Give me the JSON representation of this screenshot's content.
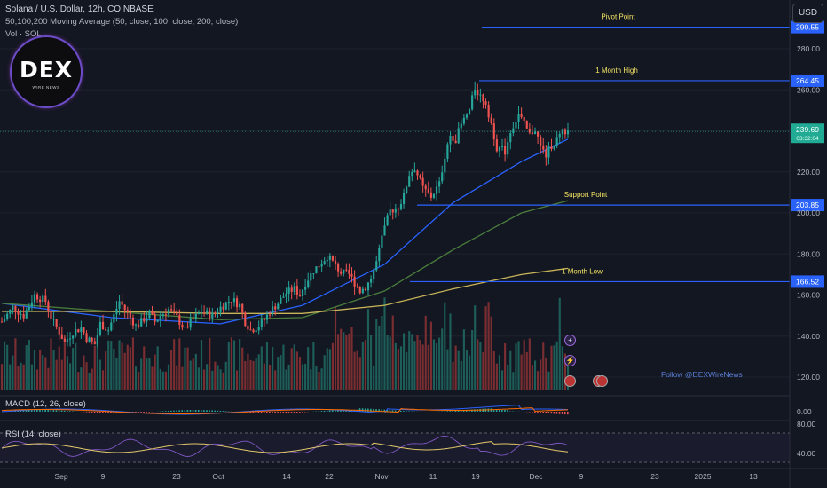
{
  "header": {
    "line1": "Solana / U.S. Dollar, 12h, COINBASE",
    "line2": "50,100,200 Moving Average (50, close, 100, close, 200, close)",
    "line3": "Vol · SOL"
  },
  "currency_button": "USD",
  "logo": {
    "main": "DEX",
    "sub": "WIRE NEWS"
  },
  "follow_text": "Follow @DEXWireNews",
  "current_price": {
    "value": "239.69",
    "countdown": "03:32:04"
  },
  "colors": {
    "background": "#131722",
    "up": "#26a69a",
    "down": "#ef5350",
    "level_line": "#2962ff",
    "level_text": "#f5e663",
    "ma50": "#2962ff",
    "ma100": "#4a7d3c",
    "ma200": "#c9b458"
  },
  "chart_data": [
    {
      "type": "candlestick",
      "title": "Solana / U.S. Dollar, 12h, COINBASE",
      "y_ticks": [
        120,
        140,
        160,
        180,
        200,
        220,
        240,
        260,
        280
      ],
      "y_ticks_shown": [
        "120.00",
        "140.00",
        "160.00",
        "180.00",
        "200.00",
        "220.00",
        "260.00",
        "280.00"
      ],
      "ylim": [
        100,
        298
      ],
      "x_ticks": [
        "Sep",
        "9",
        "23",
        "Oct",
        "14",
        "22",
        "Nov",
        "11",
        "19",
        "Dec",
        "9",
        "23",
        "2025",
        "13"
      ],
      "levels": [
        {
          "name": "Pivot Point",
          "value": 290.55,
          "label": "290.55"
        },
        {
          "name": "1 Month High",
          "value": 264.45,
          "label": "264.45"
        },
        {
          "name": "Support Point",
          "value": 203.85,
          "label": "203.85"
        },
        {
          "name": "1 Month Low",
          "value": 166.52,
          "label": "166.52"
        }
      ],
      "price_path": [
        [
          0,
          147
        ],
        [
          4,
          154
        ],
        [
          8,
          150
        ],
        [
          12,
          160
        ],
        [
          16,
          157
        ],
        [
          18,
          149
        ],
        [
          21,
          142
        ],
        [
          23,
          137
        ],
        [
          26,
          142
        ],
        [
          29,
          144
        ],
        [
          31,
          139
        ],
        [
          34,
          136
        ],
        [
          36,
          146
        ],
        [
          39,
          143
        ],
        [
          41,
          150
        ],
        [
          43,
          157
        ],
        [
          46,
          151
        ],
        [
          49,
          145
        ],
        [
          51,
          147
        ],
        [
          54,
          151
        ],
        [
          56,
          147
        ],
        [
          58,
          150
        ],
        [
          61,
          153
        ],
        [
          64,
          149
        ],
        [
          67,
          143
        ],
        [
          69,
          147
        ],
        [
          73,
          152
        ],
        [
          77,
          150
        ],
        [
          80,
          154
        ],
        [
          84,
          158
        ],
        [
          87,
          155
        ],
        [
          89,
          147
        ],
        [
          91,
          143
        ],
        [
          94,
          145
        ],
        [
          96,
          148
        ],
        [
          98,
          152
        ],
        [
          101,
          156
        ],
        [
          104,
          161
        ],
        [
          107,
          163
        ],
        [
          109,
          160
        ],
        [
          111,
          166
        ],
        [
          114,
          172
        ],
        [
          117,
          176
        ],
        [
          119,
          179
        ],
        [
          121,
          176
        ],
        [
          124,
          171
        ],
        [
          127,
          170
        ],
        [
          129,
          166
        ],
        [
          131,
          162
        ],
        [
          133,
          164
        ],
        [
          135,
          168
        ],
        [
          137,
          176
        ],
        [
          140,
          193
        ],
        [
          142,
          201
        ],
        [
          145,
          203
        ],
        [
          147,
          208
        ],
        [
          149,
          219
        ],
        [
          151,
          222
        ],
        [
          154,
          212
        ],
        [
          157,
          208
        ],
        [
          160,
          214
        ],
        [
          162,
          228
        ],
        [
          164,
          238
        ],
        [
          166,
          236
        ],
        [
          168,
          243
        ],
        [
          171,
          250
        ],
        [
          173,
          261
        ],
        [
          175,
          257
        ],
        [
          177,
          254
        ],
        [
          179,
          243
        ],
        [
          181,
          232
        ],
        [
          184,
          230
        ],
        [
          186,
          240
        ],
        [
          189,
          248
        ],
        [
          191,
          243
        ],
        [
          193,
          238
        ],
        [
          195,
          241
        ],
        [
          197,
          232
        ],
        [
          199,
          228
        ],
        [
          201,
          233
        ],
        [
          203,
          236
        ],
        [
          205,
          239
        ],
        [
          207,
          240
        ]
      ],
      "x_scale_total": 207,
      "series": [
        {
          "name": "50",
          "values": [
            [
              0,
              156
            ],
            [
              40,
              149
            ],
            [
              80,
              146
            ],
            [
              110,
              155
            ],
            [
              140,
              175
            ],
            [
              165,
              205
            ],
            [
              190,
              225
            ],
            [
              207,
              236
            ]
          ]
        },
        {
          "name": "100",
          "values": [
            [
              0,
              156
            ],
            [
              40,
              152
            ],
            [
              80,
              148
            ],
            [
              110,
              149
            ],
            [
              140,
              162
            ],
            [
              165,
              182
            ],
            [
              190,
              200
            ],
            [
              207,
              206
            ]
          ]
        },
        {
          "name": "200",
          "values": [
            [
              0,
              152
            ],
            [
              40,
              152
            ],
            [
              80,
              151
            ],
            [
              110,
              151
            ],
            [
              140,
              155
            ],
            [
              165,
              163
            ],
            [
              190,
              170
            ],
            [
              207,
              173
            ]
          ]
        }
      ]
    },
    {
      "type": "line",
      "title": "MACD (12, 26, close)",
      "y_ticks_shown": [
        "0.00"
      ]
    },
    {
      "type": "line",
      "title": "RSI (14, close)",
      "y_ticks_shown": [
        "80.00",
        "40.00"
      ]
    }
  ]
}
